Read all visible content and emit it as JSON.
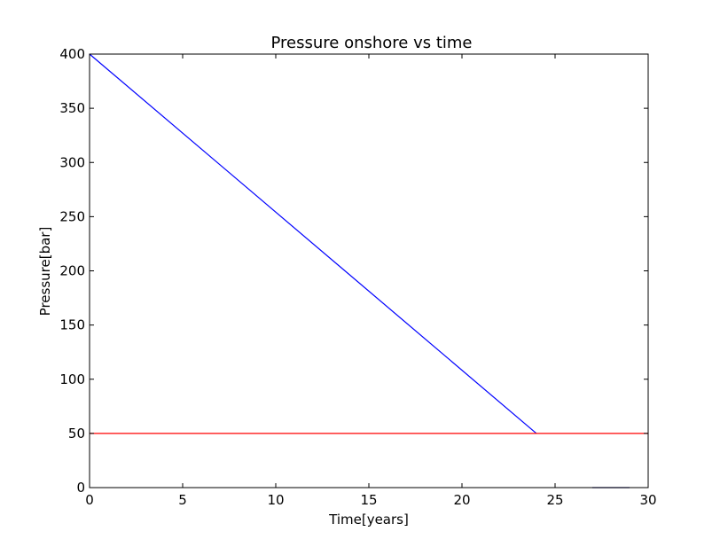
{
  "chart_data": {
    "type": "line",
    "title": "Pressure onshore vs time",
    "xlabel": "Time[years]",
    "ylabel": "Pressure[bar]",
    "xlim": [
      0,
      30
    ],
    "ylim": [
      0,
      400
    ],
    "xticks": [
      0,
      5,
      10,
      15,
      20,
      25,
      30
    ],
    "yticks": [
      0,
      50,
      100,
      150,
      200,
      250,
      300,
      350,
      400
    ],
    "grid": false,
    "series": [
      {
        "color": "#0000ff",
        "x": [
          0,
          24
        ],
        "y": [
          400,
          50
        ]
      },
      {
        "color": "#ff0000",
        "x": [
          0,
          30
        ],
        "y": [
          50,
          50
        ]
      },
      {
        "color": "#000080",
        "x": [
          27,
          29
        ],
        "y": [
          0,
          0
        ]
      }
    ]
  }
}
